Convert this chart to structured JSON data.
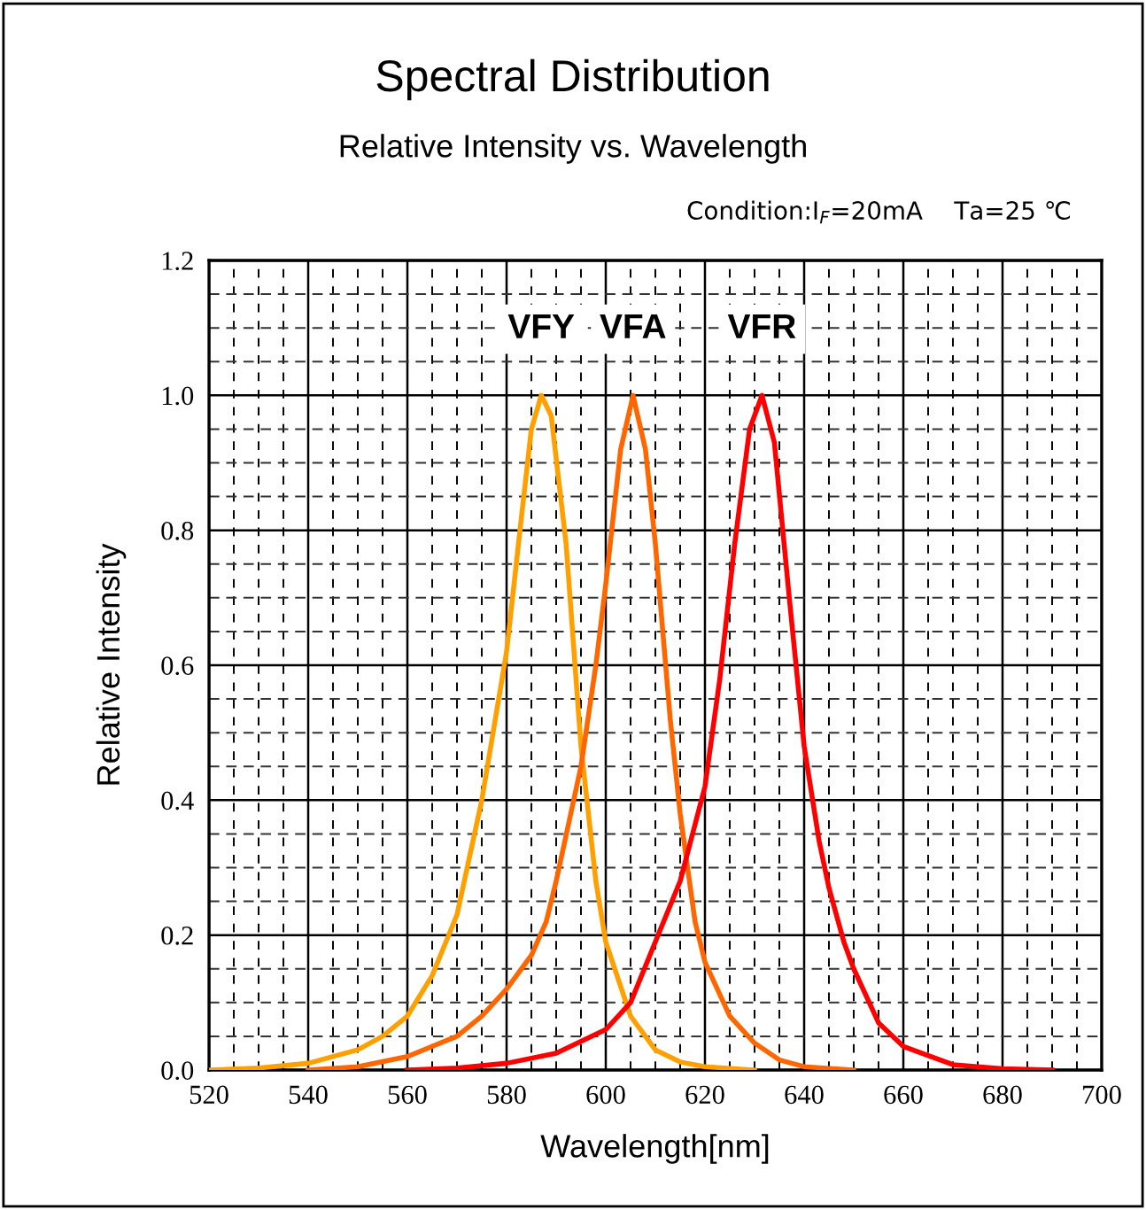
{
  "chart_data": {
    "type": "line",
    "title": "Spectral Distribution",
    "subtitle": "Relative Intensity vs. Wavelength",
    "xlabel": "Wavelength[nm]",
    "ylabel": "Relative Intensity",
    "annotations": [
      "Condition:I$_{F}$=20mA    Ta=25 ℃"
    ],
    "series": [
      {
        "name": "VFY",
        "color": "#ffa000",
        "x": [
          520,
          530,
          540,
          550,
          555,
          560,
          565,
          570,
          575,
          580,
          583,
          585,
          587,
          589,
          592,
          595,
          598,
          600,
          605,
          610,
          615,
          620,
          630
        ],
        "values": [
          0,
          0.003,
          0.01,
          0.03,
          0.05,
          0.08,
          0.14,
          0.23,
          0.4,
          0.62,
          0.82,
          0.95,
          1.0,
          0.97,
          0.78,
          0.48,
          0.28,
          0.19,
          0.08,
          0.03,
          0.012,
          0.005,
          0
        ]
      },
      {
        "name": "VFA",
        "color": "#ff6600",
        "x": [
          540,
          550,
          560,
          570,
          575,
          580,
          585,
          588,
          590,
          595,
          598,
          600,
          603,
          605.5,
          608,
          610,
          613,
          615,
          618,
          620,
          625,
          630,
          635,
          640,
          650
        ],
        "values": [
          0,
          0.005,
          0.02,
          0.05,
          0.08,
          0.12,
          0.17,
          0.22,
          0.28,
          0.45,
          0.6,
          0.72,
          0.92,
          1.0,
          0.92,
          0.78,
          0.52,
          0.38,
          0.22,
          0.16,
          0.08,
          0.04,
          0.015,
          0.005,
          0
        ]
      },
      {
        "name": "VFR",
        "color": "#ff0000",
        "x": [
          560,
          570,
          580,
          590,
          600,
          605,
          610,
          615,
          620,
          623,
          626,
          629,
          631.5,
          634,
          637,
          640,
          643,
          645,
          648,
          650,
          655,
          660,
          670,
          680,
          690
        ],
        "values": [
          0,
          0.003,
          0.01,
          0.025,
          0.06,
          0.1,
          0.19,
          0.28,
          0.42,
          0.58,
          0.78,
          0.95,
          1.0,
          0.93,
          0.7,
          0.48,
          0.34,
          0.27,
          0.19,
          0.15,
          0.07,
          0.035,
          0.008,
          0.002,
          0
        ]
      }
    ],
    "xlim": [
      520,
      700
    ],
    "xticks": [
      520,
      540,
      560,
      580,
      600,
      620,
      640,
      660,
      680,
      700
    ],
    "ylim": [
      0,
      1.2
    ],
    "yticks": [
      {
        "value": 0,
        "label": "0.0"
      },
      {
        "value": 0.2,
        "label": "0.2"
      },
      {
        "value": 0.4,
        "label": "0.4"
      },
      {
        "value": 0.6,
        "label": "0.6"
      },
      {
        "value": 0.8,
        "label": "0.8"
      },
      {
        "value": 1.0,
        "label": "1.0"
      },
      {
        "value": 1.2,
        "label": "1.2"
      }
    ],
    "grid": true,
    "marker": "none",
    "line_style": "solid",
    "legend": false
  }
}
